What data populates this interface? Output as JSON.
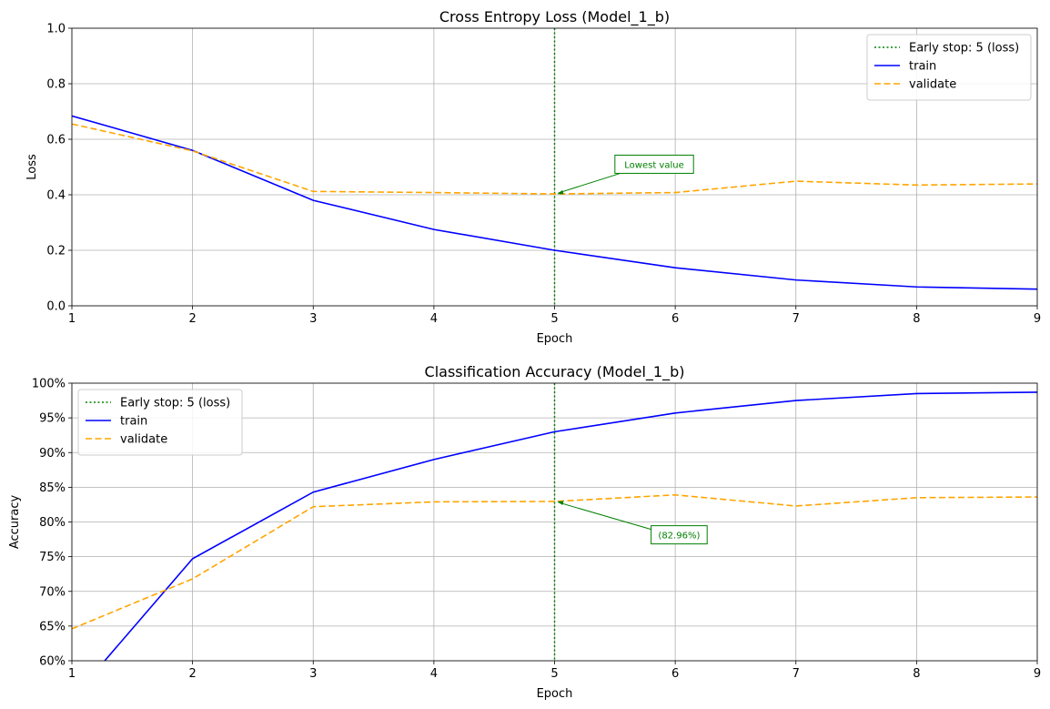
{
  "chart_data": [
    {
      "type": "line",
      "title": "Cross Entropy Loss (Model_1_b)",
      "xlabel": "Epoch",
      "ylabel": "Loss",
      "xlim": [
        1,
        9
      ],
      "ylim": [
        0,
        1
      ],
      "x_ticks": [
        "1",
        "2",
        "3",
        "4",
        "5",
        "6",
        "7",
        "8",
        "9"
      ],
      "y_ticks": [
        {
          "value": 0.0,
          "label": "0.0"
        },
        {
          "value": 0.2,
          "label": "0.2"
        },
        {
          "value": 0.4,
          "label": "0.4"
        },
        {
          "value": 0.6,
          "label": "0.6"
        },
        {
          "value": 0.8,
          "label": "0.8"
        },
        {
          "value": 1.0,
          "label": "1.0"
        }
      ],
      "grid": true,
      "legend_position": "top-right",
      "x": [
        1,
        2,
        3,
        4,
        5,
        6,
        7,
        8,
        9
      ],
      "series": [
        {
          "name": "train",
          "color": "#0000ff",
          "style": "solid",
          "values": [
            0.684,
            0.56,
            0.38,
            0.275,
            0.2,
            0.137,
            0.093,
            0.068,
            0.06
          ]
        },
        {
          "name": "validate",
          "color": "#ffa500",
          "style": "dashed",
          "values": [
            0.655,
            0.558,
            0.412,
            0.408,
            0.403,
            0.408,
            0.449,
            0.435,
            0.439
          ]
        }
      ],
      "vline": {
        "name": "Early stop: 5 (loss)",
        "x": 5,
        "color": "#008000",
        "style": "dotted"
      },
      "annotation": {
        "text": "Lowest value",
        "x": 5,
        "y": 0.403,
        "text_x": 5.5,
        "text_y": 0.51
      }
    },
    {
      "type": "line",
      "title": "Classification Accuracy (Model_1_b)",
      "xlabel": "Epoch",
      "ylabel": "Accuracy",
      "xlim": [
        1,
        9
      ],
      "ylim": [
        0.6,
        1.0
      ],
      "x_ticks": [
        "1",
        "2",
        "3",
        "4",
        "5",
        "6",
        "7",
        "8",
        "9"
      ],
      "y_ticks": [
        {
          "value": 0.6,
          "label": "60%"
        },
        {
          "value": 0.65,
          "label": "65%"
        },
        {
          "value": 0.7,
          "label": "70%"
        },
        {
          "value": 0.75,
          "label": "75%"
        },
        {
          "value": 0.8,
          "label": "80%"
        },
        {
          "value": 0.85,
          "label": "85%"
        },
        {
          "value": 0.9,
          "label": "90%"
        },
        {
          "value": 0.95,
          "label": "95%"
        },
        {
          "value": 1.0,
          "label": "100%"
        }
      ],
      "grid": true,
      "legend_position": "top-left",
      "x": [
        1,
        2,
        3,
        4,
        5,
        6,
        7,
        8,
        9
      ],
      "series": [
        {
          "name": "train",
          "color": "#0000ff",
          "style": "solid",
          "values": [
            0.545,
            0.747,
            0.843,
            0.89,
            0.93,
            0.957,
            0.975,
            0.985,
            0.987
          ]
        },
        {
          "name": "validate",
          "color": "#ffa500",
          "style": "dashed",
          "values": [
            0.646,
            0.718,
            0.822,
            0.829,
            0.8296,
            0.839,
            0.823,
            0.835,
            0.836
          ]
        }
      ],
      "vline": {
        "name": "Early stop: 5 (loss)",
        "x": 5,
        "color": "#008000",
        "style": "dotted"
      },
      "annotation": {
        "text": "(82.96%)",
        "x": 5,
        "y": 0.8296,
        "text_x": 5.8,
        "text_y": 0.7815
      }
    }
  ]
}
